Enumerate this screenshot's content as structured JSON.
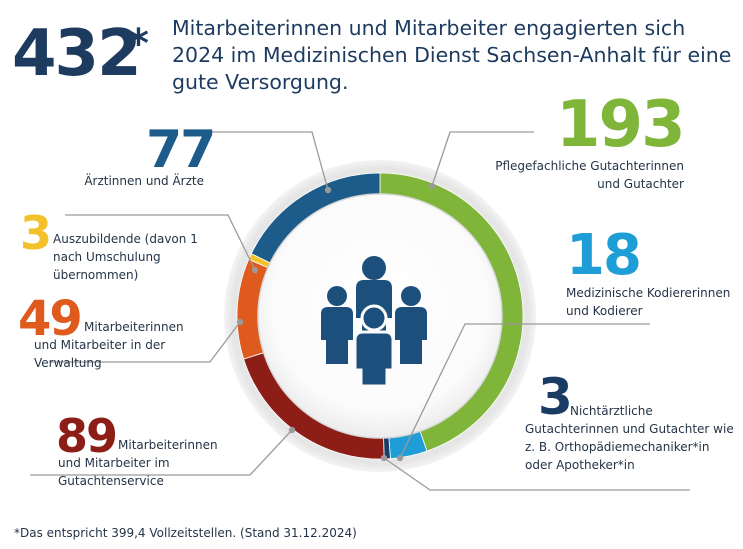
{
  "headline": {
    "number": "432",
    "asterisk": "*",
    "text": "Mitarbeiterinnen und Mitarbeiter engagierten sich 2024 im Medizinischen Dienst Sachsen-Anhalt für eine gute Versorgung."
  },
  "icon": "people-group-icon",
  "footnote": "*Das entspricht 399,4 Vollzeitstellen. (Stand 31.12.2024)",
  "colors": {
    "green": "#7fb539",
    "light_blue": "#1f9dd6",
    "dark_blue": "#1a3b64",
    "dark_red": "#8c1d17",
    "orange": "#df5a1d",
    "yellow": "#f2c12b",
    "teal_blue": "#1d5c8a"
  },
  "chart_data": {
    "type": "pie",
    "style": "donut",
    "title": "432* Mitarbeiterinnen und Mitarbeiter",
    "total": 432,
    "slices": [
      {
        "key": "pflege",
        "value": 193,
        "value_text": "193",
        "label": "Pflegefachliche Gutachterinnen und Gutachter",
        "color": "#7fb539"
      },
      {
        "key": "kodier",
        "value": 18,
        "value_text": "18",
        "label": "Medizinische Kodiererinnen und Kodierer",
        "color": "#1f9dd6"
      },
      {
        "key": "nicht",
        "value": 3,
        "value_text": "3",
        "label": "Nichtärztliche Gutachterinnen und Gutachter wie z. B. Orthopädiemechaniker*in oder Apotheker*in",
        "color": "#1a3b64"
      },
      {
        "key": "gutachten",
        "value": 89,
        "value_text": "89",
        "label": "Mitarbeiterinnen und Mitarbeiter im Gutachtenservice",
        "color": "#8c1d17"
      },
      {
        "key": "verwaltung",
        "value": 49,
        "value_text": "49",
        "label": "Mitarbeiterinnen und Mitarbeiter in der Verwaltung",
        "color": "#df5a1d"
      },
      {
        "key": "azubi",
        "value": 3,
        "value_text": "3",
        "label": "Auszubildende (davon 1 nach Umschulung übernommen)",
        "color": "#f2c12b"
      },
      {
        "key": "aerzte",
        "value": 77,
        "value_text": "77",
        "label": "Ärztinnen und Ärzte",
        "color": "#1d5c8a"
      }
    ]
  }
}
